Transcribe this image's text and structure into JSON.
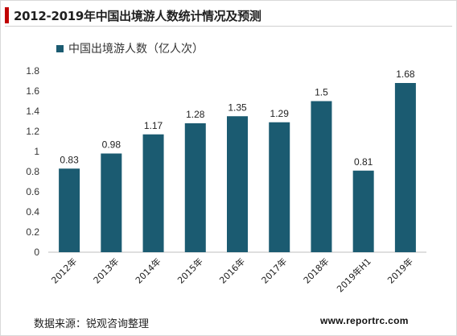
{
  "title": "2012-2019年中国出境游人数统计情况及预测",
  "legend_label": "中国出境游人数（亿人次）",
  "source": "数据来源：锐观咨询整理",
  "website": "www.reportrc.com",
  "colors": {
    "bar": "#1b5b71",
    "accent": "#c00000",
    "axis": "#bfbfbf"
  },
  "chart_data": {
    "type": "bar",
    "title": "",
    "xlabel": "",
    "ylabel": "",
    "categories": [
      "2012年",
      "2013年",
      "2014年",
      "2015年",
      "2016年",
      "2017年",
      "2018年",
      "2019年H1",
      "2019年"
    ],
    "series": [
      {
        "name": "中国出境游人数（亿人次）",
        "values": [
          0.83,
          0.98,
          1.17,
          1.28,
          1.35,
          1.29,
          1.5,
          0.81,
          1.68
        ],
        "labels": [
          "0.83",
          "0.98",
          "1.17",
          "1.28",
          "1.35",
          "1.29",
          "1.5",
          "0.81",
          "1.68"
        ]
      }
    ],
    "ylim": [
      0,
      1.8
    ],
    "yticks": [
      "0",
      "0.2",
      "0.4",
      "0.6",
      "0.8",
      "1",
      "1.2",
      "1.4",
      "1.6",
      "1.8"
    ],
    "grid": false,
    "legend": "top-left"
  }
}
